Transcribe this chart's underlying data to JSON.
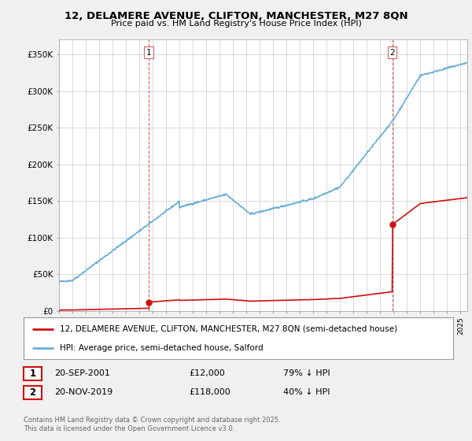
{
  "title_line1": "12, DELAMERE AVENUE, CLIFTON, MANCHESTER, M27 8QN",
  "title_line2": "Price paid vs. HM Land Registry's House Price Index (HPI)",
  "ylabel_ticks": [
    "£0",
    "£50K",
    "£100K",
    "£150K",
    "£200K",
    "£250K",
    "£300K",
    "£350K"
  ],
  "ytick_values": [
    0,
    50000,
    100000,
    150000,
    200000,
    250000,
    300000,
    350000
  ],
  "ylim": [
    0,
    370000
  ],
  "xlim_start": 1995.0,
  "xlim_end": 2025.5,
  "hpi_color": "#6baed6",
  "price_color": "#cc1111",
  "marker1_x": 2001.72,
  "marker1_y_price": 12000,
  "marker2_x": 2019.89,
  "marker2_y_price": 118000,
  "legend_label1": "12, DELAMERE AVENUE, CLIFTON, MANCHESTER, M27 8QN (semi-detached house)",
  "legend_label2": "HPI: Average price, semi-detached house, Salford",
  "note1_label": "1",
  "note1_date": "20-SEP-2001",
  "note1_price": "£12,000",
  "note1_hpi": "79% ↓ HPI",
  "note2_label": "2",
  "note2_date": "20-NOV-2019",
  "note2_price": "£118,000",
  "note2_hpi": "40% ↓ HPI",
  "footer": "Contains HM Land Registry data © Crown copyright and database right 2025.\nThis data is licensed under the Open Government Licence v3.0.",
  "background_color": "#f0f0f0",
  "plot_bg_color": "#ffffff",
  "grid_color": "#cccccc"
}
